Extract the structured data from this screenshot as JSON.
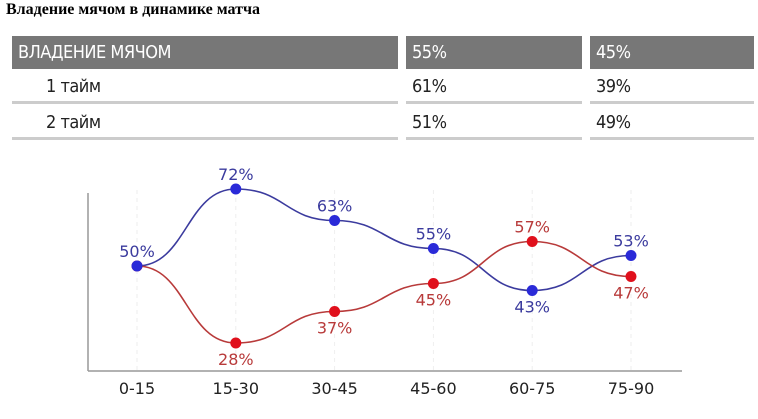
{
  "title": "Владение мячом в динамике матча",
  "table": {
    "header": [
      "ВЛАДЕНИЕ МЯЧОМ",
      "55%",
      "45%"
    ],
    "rows": [
      [
        "1 тайм",
        "61%",
        "39%"
      ],
      [
        "2 тайм",
        "51%",
        "49%"
      ]
    ]
  },
  "chart_data": {
    "type": "line",
    "categories": [
      "0-15",
      "15-30",
      "30-45",
      "45-60",
      "60-75",
      "75-90"
    ],
    "series": [
      {
        "values": [
          50,
          72,
          63,
          55,
          43,
          53
        ],
        "labels": [
          "50%",
          "72%",
          "63%",
          "55%",
          "43%",
          "53%"
        ],
        "color": "#2a2ad8",
        "line_color": "#3b3b9e"
      },
      {
        "values": [
          50,
          28,
          37,
          45,
          57,
          47
        ],
        "labels": [
          "",
          "28%",
          "37%",
          "45%",
          "57%",
          "47%"
        ],
        "color": "#e0101c",
        "line_color": "#b83a3a"
      }
    ],
    "ylim": [
      20,
      75
    ],
    "grid": "vertical dashed",
    "smooth": true
  }
}
